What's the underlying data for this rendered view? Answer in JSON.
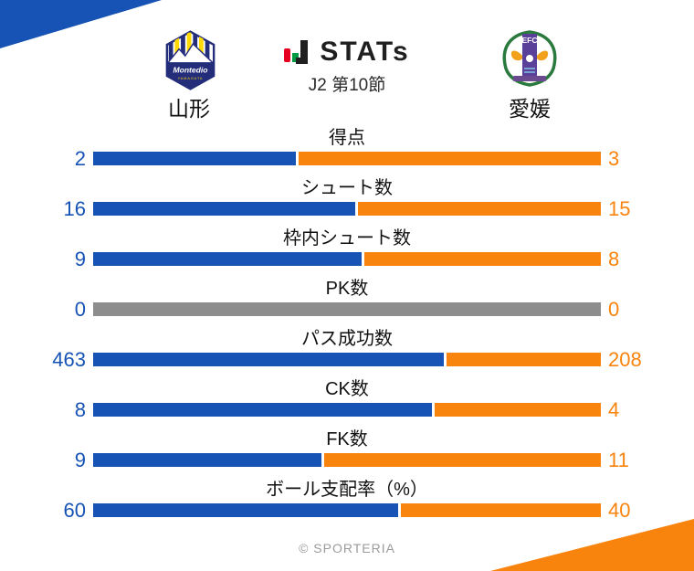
{
  "header": {
    "logo_text": "STATs",
    "subtitle": "J2 第10節",
    "left_team": "山形",
    "right_team": "愛媛",
    "left_crest": {
      "club": "Montedio Yamagata",
      "script_text": "Montedio",
      "sub_text": "YAMAGATA"
    },
    "right_crest": {
      "club": "Ehime FC",
      "initials": "EFC"
    }
  },
  "chart_data": {
    "type": "bar",
    "subtype": "split-horizontal-comparison",
    "title": "STATs",
    "subtitle": "J2 第10節",
    "teams": [
      "山形",
      "愛媛"
    ],
    "categories": [
      "得点",
      "シュート数",
      "枠内シュート数",
      "PK数",
      "パス成功数",
      "CK数",
      "FK数",
      "ボール支配率（%）"
    ],
    "series": [
      {
        "name": "山形",
        "color": "#1653b4",
        "values": [
          2,
          16,
          9,
          0,
          463,
          8,
          9,
          60
        ]
      },
      {
        "name": "愛媛",
        "color": "#f8830d",
        "values": [
          3,
          15,
          8,
          0,
          208,
          4,
          11,
          40
        ]
      }
    ],
    "zero_bar_color": "#8d8d8d",
    "bar_ratio_rule": "segment width = value / (left + right); all-zero row shown as full gray bar",
    "legend_position": "none",
    "grid": false
  },
  "colors": {
    "left_accent": "#1653b4",
    "right_accent": "#f8830d",
    "zero_gray": "#8d8d8d",
    "logo_red": "#e5001f",
    "logo_green": "#009944",
    "background": "#ffffff"
  },
  "footer": {
    "credit": "© SPORTERIA"
  }
}
